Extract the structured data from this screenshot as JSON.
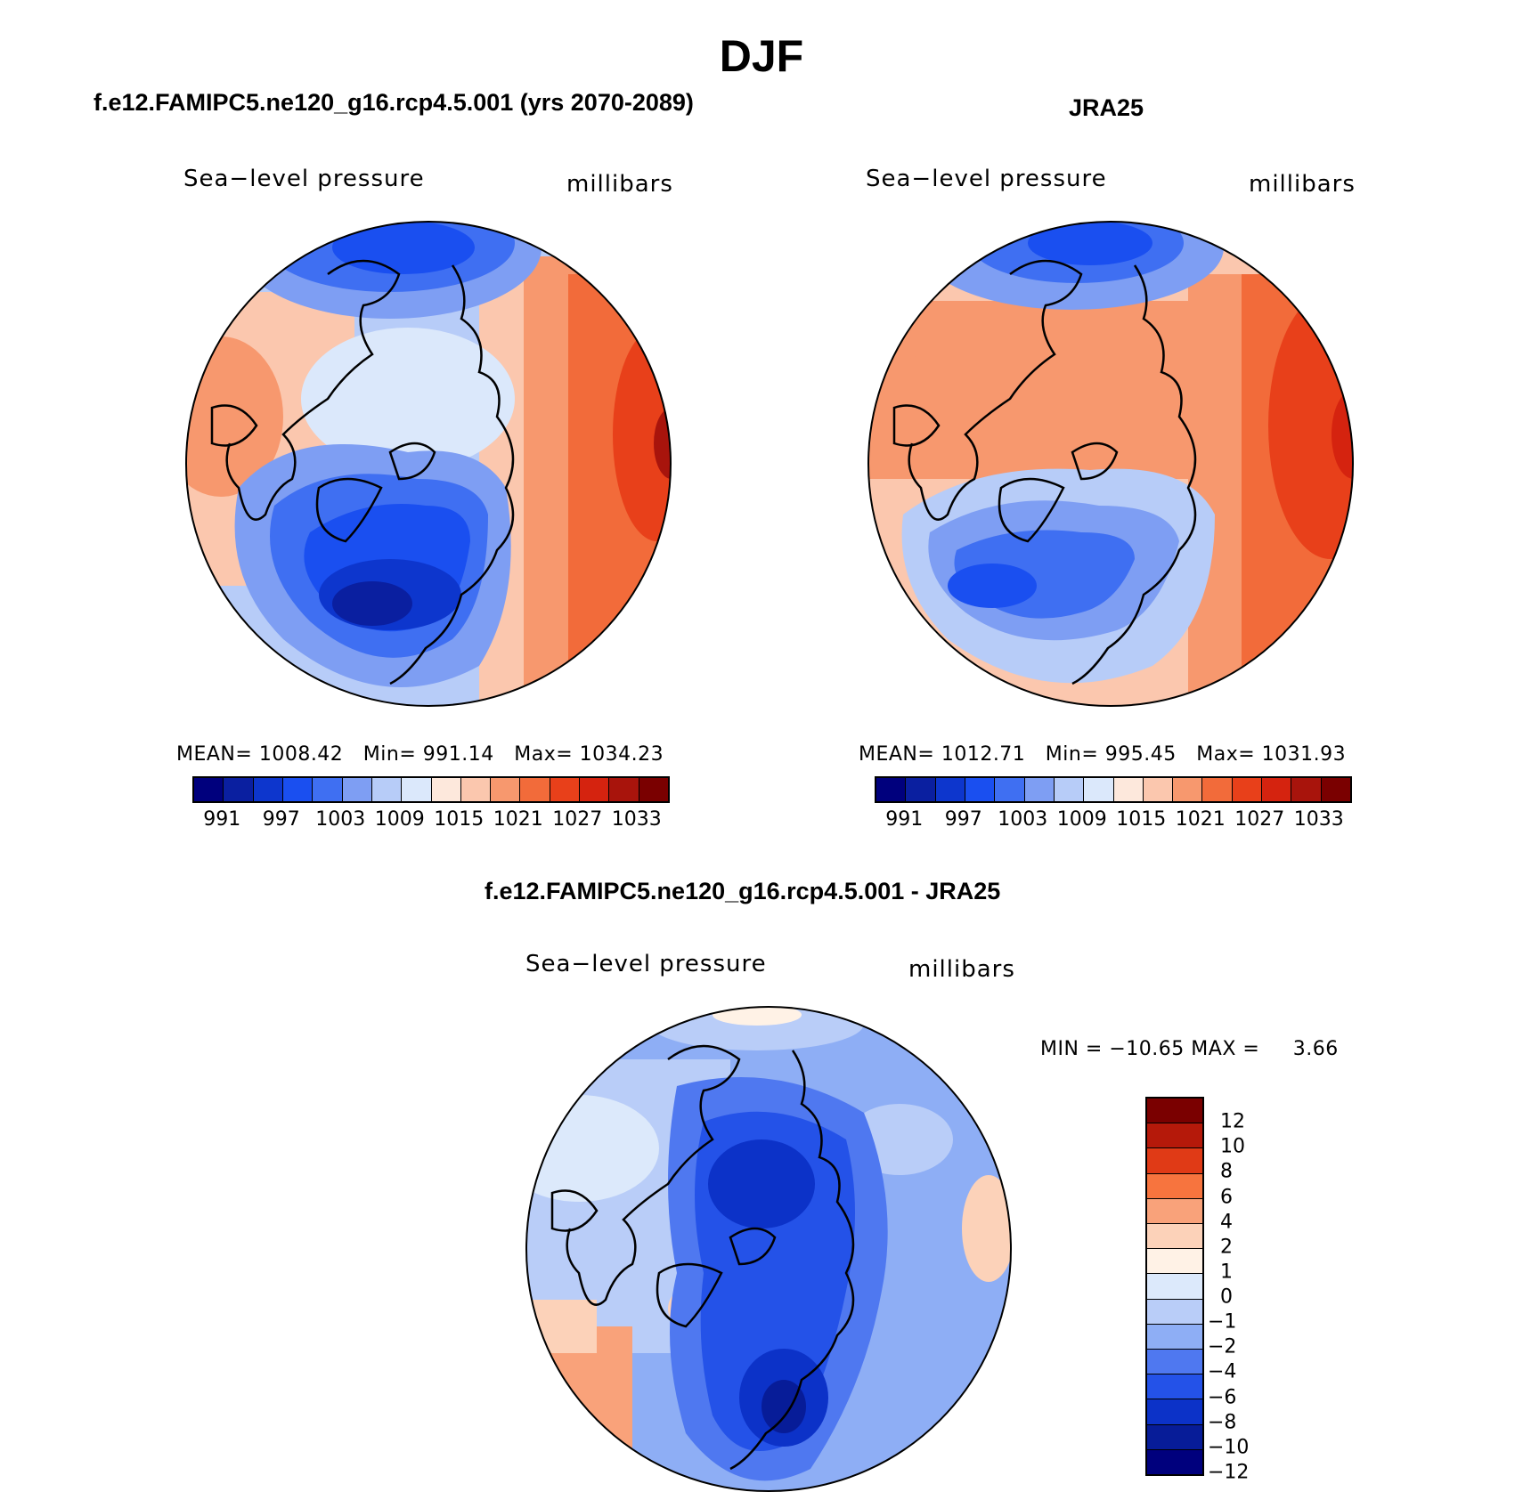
{
  "page_title": "DJF",
  "colors": {
    "abs_scale": [
      "#00007d",
      "#0a1fa0",
      "#0d36cd",
      "#1a4ff0",
      "#3f6ff2",
      "#7e9ef3",
      "#b7ccf8",
      "#dbe8fb",
      "#fde8dc",
      "#fbc7ae",
      "#f7986e",
      "#f26b3a",
      "#e8401a",
      "#d5230f",
      "#a8140c",
      "#7a0000"
    ],
    "diff_scale": [
      "#7a0000",
      "#b5190a",
      "#e03a16",
      "#f7743e",
      "#f9a27a",
      "#fcd2b9",
      "#fff2e6",
      "#dce9fb",
      "#b9cdf8",
      "#8eaef5",
      "#4f78f0",
      "#2452e8",
      "#0c32c8",
      "#071c98",
      "#00007d"
    ]
  },
  "panels": [
    {
      "title": "f.e12.FAMIPC5.ne120_g16.rcp4.5.001 (yrs 2070-2089)",
      "variable": "Sea−level pressure",
      "units": "millibars",
      "stats": {
        "mean_label": "MEAN=",
        "mean": "1008.42",
        "min_label": "Min=",
        "min": "991.14",
        "max_label": "Max=",
        "max": "1034.23"
      },
      "colorbar_ticks": [
        "991",
        "997",
        "1003",
        "1009",
        "1015",
        "1021",
        "1027",
        "1033"
      ]
    },
    {
      "title": "JRA25",
      "variable": "Sea−level pressure",
      "units": "millibars",
      "stats": {
        "mean_label": "MEAN=",
        "mean": "1012.71",
        "min_label": "Min=",
        "min": "995.45",
        "max_label": "Max=",
        "max": "1031.93"
      },
      "colorbar_ticks": [
        "991",
        "997",
        "1003",
        "1009",
        "1015",
        "1021",
        "1027",
        "1033"
      ]
    },
    {
      "title": "f.e12.FAMIPC5.ne120_g16.rcp4.5.001 - JRA25",
      "variable": "Sea−level pressure",
      "units": "millibars",
      "stats": {
        "min_label": "MIN =",
        "min": "−10.65",
        "max_label": "MAX =",
        "max": "3.66"
      },
      "colorbar_labels": [
        "12",
        "10",
        "8",
        "6",
        "4",
        "2",
        "1",
        "0",
        "−1",
        "−2",
        "−4",
        "−6",
        "−8",
        "−10",
        "−12"
      ]
    }
  ]
}
